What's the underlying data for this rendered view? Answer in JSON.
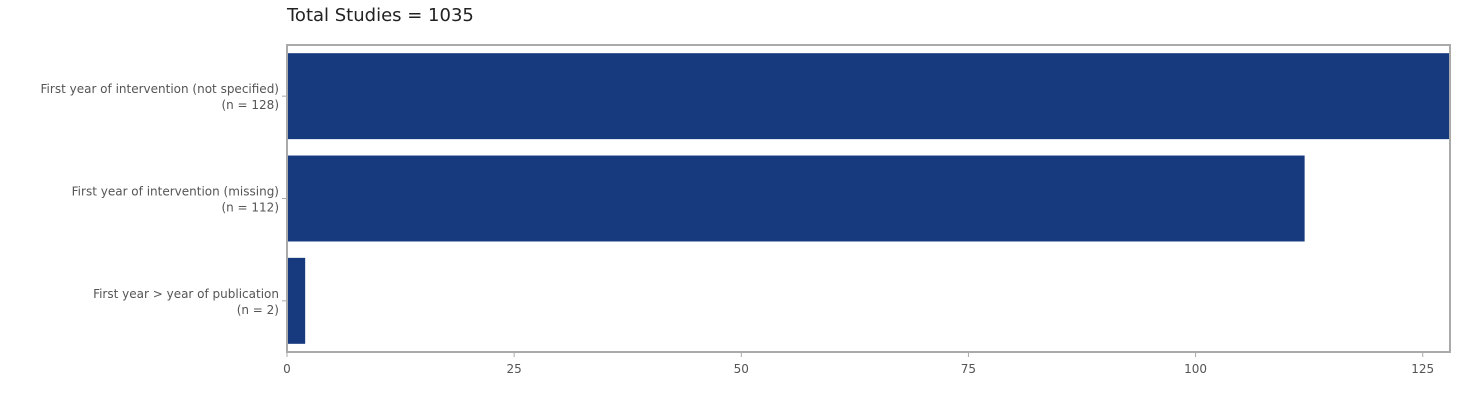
{
  "chart_data": {
    "type": "bar",
    "orientation": "horizontal",
    "title": "Total Studies = 1035",
    "categories": [
      [
        "First year of intervention (not specified)",
        "(n = 128)"
      ],
      [
        "First year of intervention (missing)",
        "(n = 112)"
      ],
      [
        "First year > year of publication",
        "(n = 2)"
      ]
    ],
    "values": [
      128,
      112,
      2
    ],
    "xlim": [
      0,
      128
    ],
    "xticks": [
      0,
      25,
      50,
      75,
      100,
      125
    ],
    "xlabel": "",
    "ylabel": "",
    "grid": false,
    "bar_color": "#173A7E",
    "frame_color": "#AAAAAA"
  }
}
